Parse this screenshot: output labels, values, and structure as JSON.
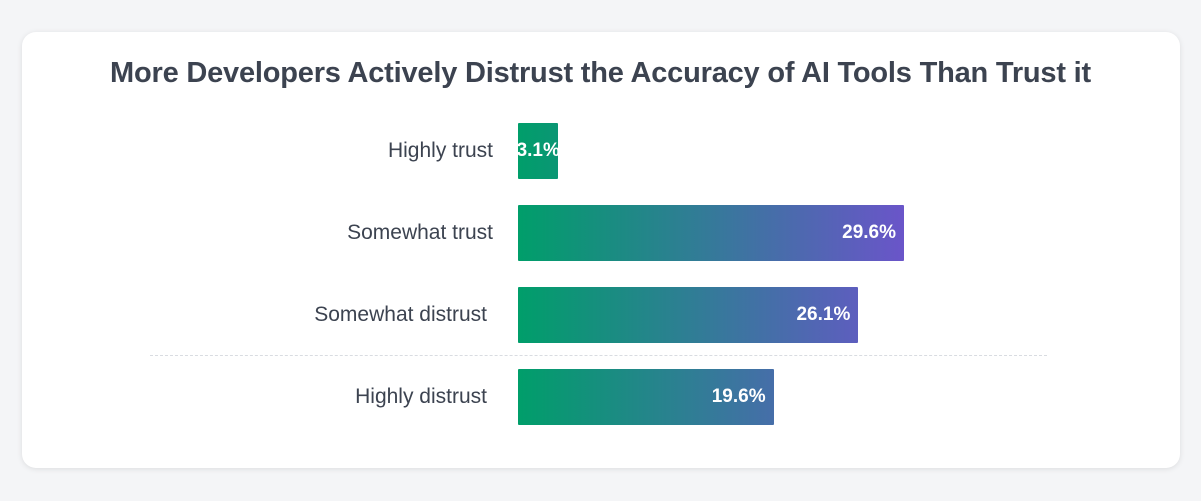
{
  "chart_data": {
    "type": "bar",
    "orientation": "horizontal",
    "title": "More Developers Actively Distrust the Accuracy of AI Tools Than Trust it",
    "categories": [
      "Highly trust",
      "Somewhat trust",
      "Somewhat distrust",
      "Highly distrust"
    ],
    "values": [
      3.1,
      29.6,
      26.1,
      19.6
    ],
    "value_labels": [
      "3.1%",
      "29.6%",
      "26.1%",
      "19.6%"
    ],
    "unit": "%",
    "xlim": [
      0,
      29.6
    ],
    "grid": false,
    "legend": "none",
    "colors": {
      "gradient_start": "#009e6a",
      "gradient_end": "#6a55c9",
      "text": "#3c4350",
      "value_text": "#ffffff"
    }
  }
}
